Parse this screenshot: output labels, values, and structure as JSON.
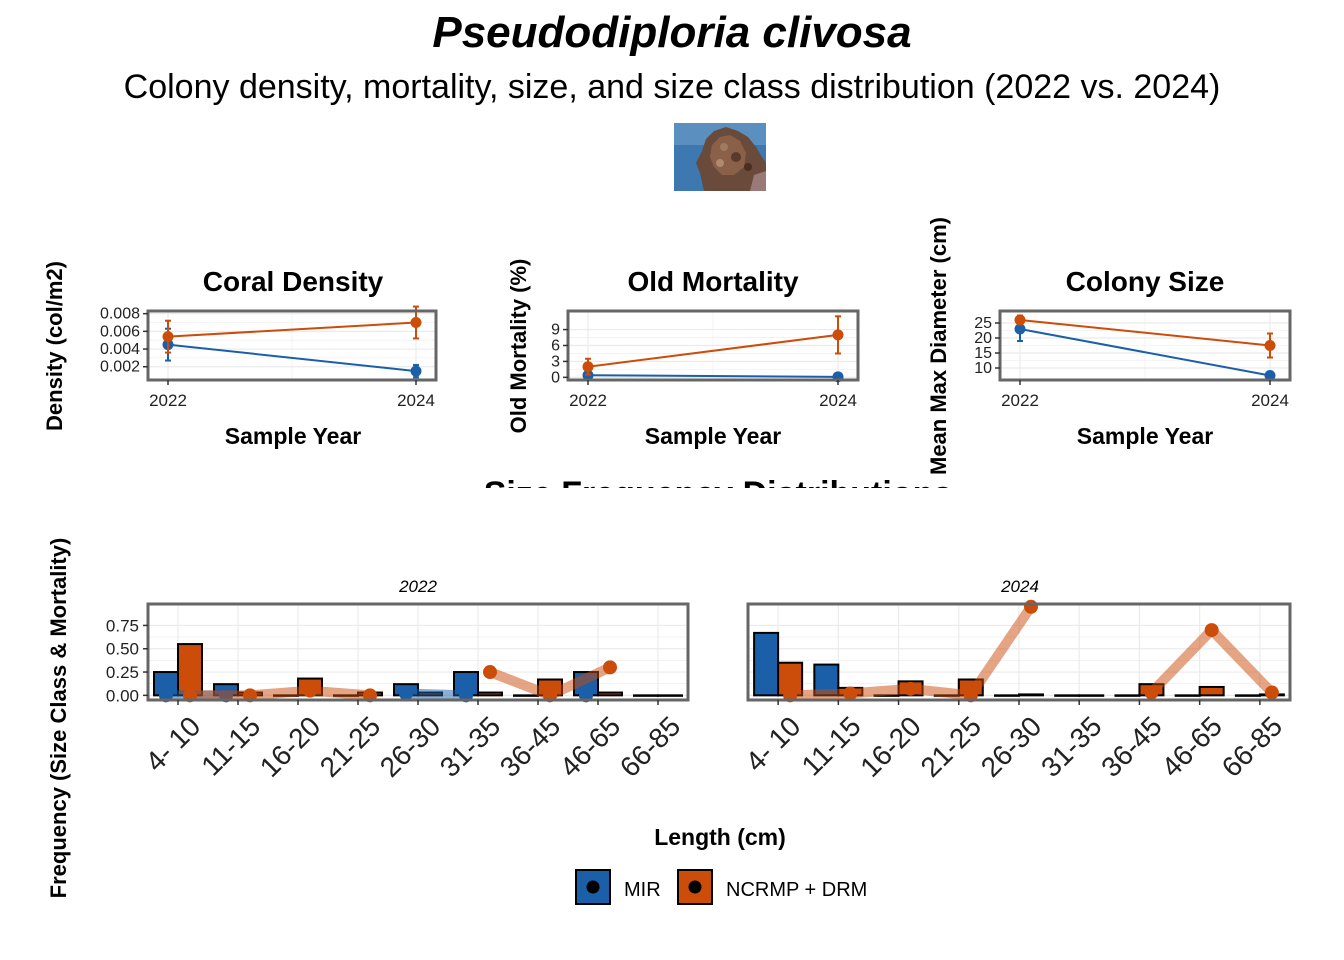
{
  "title": "Pseudodiploria clivosa",
  "subtitle": "Colony density, mortality, size, and size class distribution (2022 vs. 2024)",
  "image_alt": "coral photo",
  "colors": {
    "mir": "#1a5fa8",
    "ncrmp": "#cc4c0a",
    "panel_border": "#666666",
    "grid": "#ebebeb"
  },
  "chart_data": [
    {
      "type": "line",
      "title": "Coral Density",
      "xlabel": "Sample Year",
      "ylabel": "Density (col/m2)",
      "x": [
        2022,
        2024
      ],
      "ylim": [
        0.0005,
        0.0083
      ],
      "yticks": [
        0.002,
        0.004,
        0.006,
        0.008
      ],
      "ytick_labels": [
        "0.002",
        "0.004",
        "0.006",
        "0.008"
      ],
      "series": [
        {
          "name": "MIR",
          "values": [
            0.0045,
            0.0015
          ],
          "err": [
            0.0018,
            0.0007
          ]
        },
        {
          "name": "NCRMP + DRM",
          "values": [
            0.0054,
            0.007
          ],
          "err": [
            0.0018,
            0.0018
          ]
        }
      ]
    },
    {
      "type": "line",
      "title": "Old Mortality",
      "xlabel": "Sample Year",
      "ylabel": "Old Mortality (%)",
      "x": [
        2022,
        2024
      ],
      "ylim": [
        -0.5,
        12.5
      ],
      "yticks": [
        0,
        3,
        6,
        9
      ],
      "ytick_labels": [
        "0",
        "3",
        "6",
        "9"
      ],
      "series": [
        {
          "name": "MIR",
          "values": [
            0.4,
            0.1
          ],
          "err": [
            0.2,
            0.1
          ]
        },
        {
          "name": "NCRMP + DRM",
          "values": [
            2.0,
            8.0
          ],
          "err": [
            1.5,
            3.5
          ]
        }
      ]
    },
    {
      "type": "line",
      "title": "Colony Size",
      "xlabel": "Sample Year",
      "ylabel": "Mean Max Diameter (cm)",
      "x": [
        2022,
        2024
      ],
      "ylim": [
        6,
        29
      ],
      "yticks": [
        10,
        15,
        20,
        25
      ],
      "ytick_labels": [
        "10",
        "15",
        "20",
        "25"
      ],
      "series": [
        {
          "name": "MIR",
          "values": [
            23.0,
            7.5
          ],
          "err": [
            4.0,
            0.5
          ]
        },
        {
          "name": "NCRMP + DRM",
          "values": [
            26.0,
            17.5
          ],
          "err": [
            1.5,
            4.0
          ]
        }
      ]
    },
    {
      "type": "bar",
      "title": "Size Frequency Distributions",
      "xlabel": "Length (cm)",
      "ylabel": "Frequency (Size Class & Mortality)",
      "ylim": [
        -0.05,
        0.98
      ],
      "yticks": [
        0,
        0.25,
        0.5,
        0.75
      ],
      "ytick_labels": [
        "0.00",
        "0.25",
        "0.50",
        "0.75"
      ],
      "categories": [
        "4- 10",
        "11-15",
        "16-20",
        "21-25",
        "26-30",
        "31-35",
        "36-45",
        "46-65",
        "66-85"
      ],
      "facets": [
        {
          "label": "2022",
          "bars": [
            {
              "name": "MIR",
              "values": [
                0.25,
                0.12,
                0.0,
                0.0,
                0.12,
                0.25,
                0.0,
                0.25,
                0.0
              ]
            },
            {
              "name": "NCRMP + DRM",
              "values": [
                0.55,
                0.03,
                0.18,
                0.03,
                0.03,
                0.03,
                0.17,
                0.03,
                0.0
              ]
            }
          ],
          "mortality": [
            {
              "name": "MIR",
              "values": [
                0.0,
                0.0,
                null,
                null,
                0.02,
                0.0,
                null,
                0.0,
                null
              ]
            },
            {
              "name": "NCRMP + DRM",
              "values": [
                0.0,
                0.0,
                0.05,
                0.0,
                null,
                0.25,
                0.0,
                0.3,
                null
              ]
            }
          ]
        },
        {
          "label": "2024",
          "bars": [
            {
              "name": "MIR",
              "values": [
                0.67,
                0.33,
                0.0,
                0.0,
                0.0,
                0.0,
                0.0,
                0.0,
                0.0
              ]
            },
            {
              "name": "NCRMP + DRM",
              "values": [
                0.35,
                0.08,
                0.15,
                0.17,
                0.01,
                0.0,
                0.12,
                0.09,
                0.01
              ]
            }
          ],
          "mortality": [
            {
              "name": "MIR",
              "values": [
                null,
                null,
                null,
                null,
                null,
                null,
                null,
                null,
                null
              ]
            },
            {
              "name": "NCRMP + DRM",
              "values": [
                0.0,
                0.02,
                0.07,
                0.0,
                0.95,
                null,
                0.03,
                0.7,
                0.03
              ]
            }
          ]
        }
      ]
    }
  ],
  "legend": {
    "position": "bottom",
    "items": [
      {
        "label": "MIR",
        "color": "#1a5fa8"
      },
      {
        "label": "NCRMP + DRM",
        "color": "#cc4c0a"
      }
    ]
  }
}
